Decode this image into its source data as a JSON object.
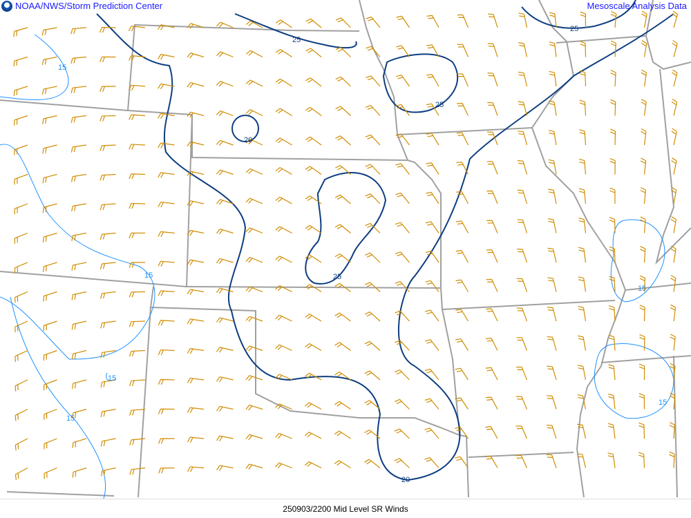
{
  "header": {
    "left_title": "NOAA/NWS/Storm Prediction Center",
    "right_title": "Mesoscale Analysis Data",
    "logo": "noaa-logo"
  },
  "footer": {
    "caption": "250903/2200 Mid Level SR Winds"
  },
  "colors": {
    "boundary": "#a0a0a0",
    "barb": "#d08c00",
    "contour_high": "#0d3d80",
    "contour_low": "#1e90ff"
  },
  "contour_labels": [
    {
      "text": "15",
      "level": "low"
    },
    {
      "text": "25",
      "level": "high"
    },
    {
      "text": "25",
      "level": "high"
    },
    {
      "text": "25",
      "level": "high"
    },
    {
      "text": "20",
      "level": "high"
    },
    {
      "text": "25",
      "level": "high"
    },
    {
      "text": "15",
      "level": "low"
    },
    {
      "text": "15",
      "level": "low"
    },
    {
      "text": "15",
      "level": "low"
    },
    {
      "text": "15",
      "level": "low"
    },
    {
      "text": "15",
      "level": "low"
    },
    {
      "text": "20",
      "level": "high"
    }
  ]
}
